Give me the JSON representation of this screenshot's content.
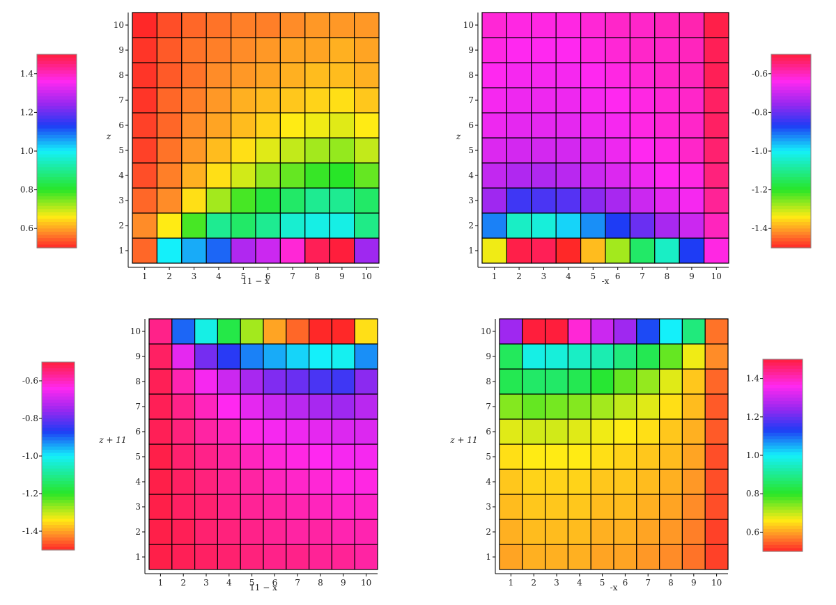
{
  "chart_data": [
    {
      "type": "heatmap",
      "xlabel": "11 − x",
      "ylabel": "z",
      "x_ticks": [
        1,
        2,
        3,
        4,
        5,
        6,
        7,
        8,
        9,
        10
      ],
      "y_ticks": [
        1,
        2,
        3,
        4,
        5,
        6,
        7,
        8,
        9,
        10
      ],
      "colorbar": {
        "range": [
          0.5,
          1.5
        ],
        "ticks": [
          "0.6",
          "0.8",
          "1.0",
          "1.2",
          "1.4"
        ],
        "position": "left"
      },
      "grid": [
        [
          0.55,
          1.0,
          1.05,
          1.1,
          1.27,
          1.3,
          1.38,
          1.48,
          1.5,
          1.25
        ],
        [
          0.58,
          0.66,
          0.78,
          0.9,
          0.86,
          0.9,
          0.96,
          0.98,
          0.98,
          0.89
        ],
        [
          0.55,
          0.58,
          0.65,
          0.72,
          0.78,
          0.82,
          0.86,
          0.9,
          0.9,
          0.86
        ],
        [
          0.53,
          0.57,
          0.61,
          0.65,
          0.69,
          0.73,
          0.76,
          0.79,
          0.8,
          0.76
        ],
        [
          0.52,
          0.56,
          0.59,
          0.62,
          0.65,
          0.68,
          0.7,
          0.72,
          0.73,
          0.7
        ],
        [
          0.52,
          0.55,
          0.58,
          0.6,
          0.62,
          0.64,
          0.66,
          0.67,
          0.68,
          0.66
        ],
        [
          0.51,
          0.55,
          0.57,
          0.59,
          0.61,
          0.62,
          0.63,
          0.64,
          0.65,
          0.63
        ],
        [
          0.51,
          0.54,
          0.56,
          0.58,
          0.59,
          0.6,
          0.61,
          0.62,
          0.62,
          0.61
        ],
        [
          0.51,
          0.54,
          0.56,
          0.57,
          0.58,
          0.59,
          0.6,
          0.6,
          0.61,
          0.6
        ],
        [
          0.5,
          0.53,
          0.55,
          0.56,
          0.57,
          0.57,
          0.58,
          0.59,
          0.59,
          0.59
        ]
      ]
    },
    {
      "type": "heatmap",
      "xlabel": "-x",
      "ylabel": "z",
      "x_ticks": [
        1,
        2,
        3,
        4,
        5,
        6,
        7,
        8,
        9,
        10
      ],
      "y_ticks": [
        1,
        2,
        3,
        4,
        5,
        6,
        7,
        8,
        9,
        10
      ],
      "colorbar": {
        "range": [
          -1.5,
          -0.5
        ],
        "ticks": [
          "-0.6",
          "-0.8",
          "-1.0",
          "-1.2",
          "-1.4"
        ],
        "position": "right"
      },
      "grid": [
        [
          -1.33,
          -0.51,
          -0.52,
          -1.55,
          -1.38,
          -1.28,
          -1.14,
          -1.05,
          -0.87,
          -0.63
        ],
        [
          -0.92,
          -1.05,
          -1.03,
          -0.98,
          -0.93,
          -0.87,
          -0.8,
          -0.74,
          -0.7,
          -0.6
        ],
        [
          -0.75,
          -0.84,
          -0.83,
          -0.82,
          -0.77,
          -0.74,
          -0.7,
          -0.67,
          -0.65,
          -0.57
        ],
        [
          -0.71,
          -0.73,
          -0.73,
          -0.72,
          -0.7,
          -0.68,
          -0.66,
          -0.64,
          -0.63,
          -0.55
        ],
        [
          -0.68,
          -0.69,
          -0.69,
          -0.69,
          -0.68,
          -0.66,
          -0.64,
          -0.63,
          -0.61,
          -0.54
        ],
        [
          -0.66,
          -0.67,
          -0.67,
          -0.67,
          -0.66,
          -0.65,
          -0.63,
          -0.62,
          -0.61,
          -0.53
        ],
        [
          -0.65,
          -0.66,
          -0.66,
          -0.66,
          -0.65,
          -0.64,
          -0.63,
          -0.62,
          -0.61,
          -0.53
        ],
        [
          -0.64,
          -0.65,
          -0.65,
          -0.65,
          -0.64,
          -0.63,
          -0.62,
          -0.61,
          -0.6,
          -0.52
        ],
        [
          -0.63,
          -0.64,
          -0.64,
          -0.64,
          -0.63,
          -0.62,
          -0.61,
          -0.61,
          -0.6,
          -0.52
        ],
        [
          -0.62,
          -0.63,
          -0.63,
          -0.63,
          -0.62,
          -0.61,
          -0.61,
          -0.6,
          -0.59,
          -0.51
        ]
      ]
    },
    {
      "type": "heatmap",
      "xlabel": "11 − x",
      "ylabel": "z + 11",
      "x_ticks": [
        1,
        2,
        3,
        4,
        5,
        6,
        7,
        8,
        9,
        10
      ],
      "y_ticks": [
        1,
        2,
        3,
        4,
        5,
        6,
        7,
        8,
        9,
        10
      ],
      "colorbar": {
        "range": [
          -1.5,
          -0.5
        ],
        "ticks": [
          "-0.6",
          "-0.8",
          "-1.0",
          "-1.2",
          "-1.4"
        ],
        "position": "left"
      },
      "grid": [
        [
          -0.51,
          -0.52,
          -0.53,
          -0.54,
          -0.55,
          -0.56,
          -0.56,
          -0.57,
          -0.57,
          -0.58
        ],
        [
          -0.51,
          -0.52,
          -0.54,
          -0.55,
          -0.56,
          -0.57,
          -0.58,
          -0.58,
          -0.59,
          -0.59
        ],
        [
          -0.51,
          -0.53,
          -0.54,
          -0.56,
          -0.57,
          -0.58,
          -0.59,
          -0.6,
          -0.61,
          -0.61
        ],
        [
          -0.51,
          -0.53,
          -0.55,
          -0.57,
          -0.58,
          -0.6,
          -0.61,
          -0.62,
          -0.63,
          -0.63
        ],
        [
          -0.51,
          -0.54,
          -0.56,
          -0.58,
          -0.6,
          -0.62,
          -0.63,
          -0.64,
          -0.65,
          -0.65
        ],
        [
          -0.52,
          -0.55,
          -0.58,
          -0.6,
          -0.63,
          -0.65,
          -0.66,
          -0.67,
          -0.68,
          -0.68
        ],
        [
          -0.52,
          -0.56,
          -0.6,
          -0.64,
          -0.67,
          -0.7,
          -0.72,
          -0.74,
          -0.75,
          -0.72
        ],
        [
          -0.52,
          -0.59,
          -0.65,
          -0.7,
          -0.74,
          -0.78,
          -0.8,
          -0.83,
          -0.84,
          -0.77
        ],
        [
          -0.53,
          -0.67,
          -0.79,
          -0.86,
          -0.92,
          -0.95,
          -0.98,
          -1.0,
          -1.01,
          -0.93
        ],
        [
          -0.56,
          -0.9,
          -1.02,
          -1.17,
          -1.28,
          -1.4,
          -1.45,
          -1.52,
          -1.53,
          -1.35
        ]
      ]
    },
    {
      "type": "heatmap",
      "xlabel": "-x",
      "ylabel": "z + 11",
      "x_ticks": [
        1,
        2,
        3,
        4,
        5,
        6,
        7,
        8,
        9,
        10
      ],
      "y_ticks": [
        1,
        2,
        3,
        4,
        5,
        6,
        7,
        8,
        9,
        10
      ],
      "colorbar": {
        "range": [
          0.5,
          1.5
        ],
        "ticks": [
          "1.4",
          "1.2",
          "1.0",
          "0.8",
          "0.6"
        ],
        "position": "right"
      },
      "grid": [
        [
          0.6,
          0.61,
          0.61,
          0.61,
          0.6,
          0.6,
          0.59,
          0.58,
          0.56,
          0.52
        ],
        [
          0.61,
          0.62,
          0.62,
          0.62,
          0.61,
          0.61,
          0.6,
          0.59,
          0.57,
          0.52
        ],
        [
          0.62,
          0.63,
          0.63,
          0.63,
          0.62,
          0.62,
          0.61,
          0.6,
          0.58,
          0.53
        ],
        [
          0.63,
          0.64,
          0.64,
          0.64,
          0.63,
          0.63,
          0.62,
          0.61,
          0.59,
          0.53
        ],
        [
          0.65,
          0.66,
          0.66,
          0.66,
          0.65,
          0.64,
          0.63,
          0.62,
          0.6,
          0.53
        ],
        [
          0.68,
          0.69,
          0.69,
          0.68,
          0.67,
          0.66,
          0.65,
          0.63,
          0.61,
          0.54
        ],
        [
          0.74,
          0.76,
          0.75,
          0.74,
          0.72,
          0.7,
          0.68,
          0.65,
          0.62,
          0.54
        ],
        [
          0.84,
          0.86,
          0.86,
          0.84,
          0.81,
          0.76,
          0.73,
          0.68,
          0.63,
          0.55
        ],
        [
          0.85,
          0.98,
          0.97,
          0.95,
          0.93,
          0.88,
          0.84,
          0.76,
          0.67,
          0.58
        ],
        [
          1.25,
          1.5,
          1.5,
          1.38,
          1.3,
          1.25,
          1.12,
          1.0,
          0.88,
          0.56
        ]
      ]
    }
  ]
}
